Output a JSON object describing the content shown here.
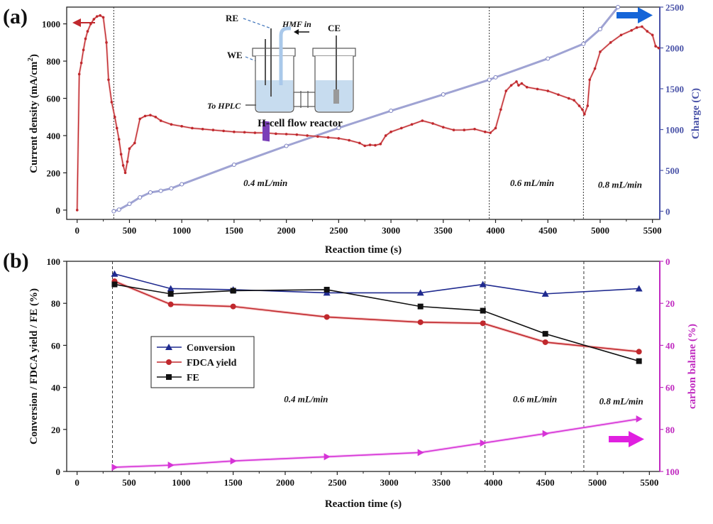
{
  "chart_data": [
    {
      "panel_label": "(a)",
      "type": "line",
      "xlabel": "Reaction time (s)",
      "ylabel_left": "Current density (mA/cm²)",
      "ylabel_left_base": "Current density (mA/cm",
      "ylabel_left_sup": "2",
      "ylabel_left_close": ")",
      "ylabel_right": "Charge (C)",
      "xlim": [
        -100,
        5570
      ],
      "ylim_left": [
        -50,
        1090
      ],
      "ylim_right": [
        -100,
        2500
      ],
      "xticks": [
        0,
        500,
        1000,
        1500,
        2000,
        2500,
        3000,
        3500,
        4000,
        4500,
        5000,
        5500
      ],
      "yticks_left": [
        0,
        200,
        400,
        600,
        800,
        1000
      ],
      "yticks_right": [
        0,
        500,
        1000,
        1500,
        2000,
        2500
      ],
      "vlines": [
        350,
        3940,
        4840
      ],
      "flow_labels": [
        {
          "text": "0.4 mL/min",
          "x": 1800,
          "y": 130
        },
        {
          "text": "0.6 mL/min",
          "x": 4350,
          "y": 130
        },
        {
          "text": "0.8 mL/min",
          "x": 5190,
          "y": 120
        }
      ],
      "inset": {
        "title": "H-cell flow reactor",
        "labels": [
          "RE",
          "HMF in",
          "CE",
          "WE",
          "To HPLC"
        ]
      },
      "series": [
        {
          "name": "Current density",
          "axis": "left",
          "color": "#c0282d",
          "x": [
            0,
            20,
            40,
            60,
            80,
            100,
            130,
            160,
            190,
            220,
            250,
            280,
            300,
            330,
            360,
            380,
            400,
            420,
            440,
            460,
            480,
            500,
            550,
            600,
            650,
            700,
            750,
            800,
            900,
            1000,
            1100,
            1200,
            1300,
            1400,
            1500,
            1600,
            1700,
            1800,
            1900,
            2000,
            2100,
            2200,
            2300,
            2400,
            2500,
            2600,
            2700,
            2750,
            2800,
            2850,
            2900,
            2950,
            3000,
            3100,
            3200,
            3300,
            3400,
            3500,
            3600,
            3700,
            3800,
            3900,
            3950,
            4000,
            4050,
            4100,
            4150,
            4200,
            4220,
            4250,
            4300,
            4400,
            4500,
            4600,
            4700,
            4750,
            4800,
            4830,
            4850,
            4880,
            4900,
            4950,
            5000,
            5100,
            5200,
            5300,
            5350,
            5400,
            5450,
            5500,
            5530,
            5560
          ],
          "values": [
            0,
            730,
            790,
            860,
            920,
            960,
            1000,
            1025,
            1040,
            1045,
            1035,
            900,
            700,
            580,
            500,
            440,
            380,
            300,
            240,
            200,
            260,
            330,
            360,
            490,
            505,
            510,
            500,
            480,
            460,
            450,
            440,
            435,
            430,
            425,
            420,
            418,
            415,
            415,
            410,
            408,
            405,
            400,
            395,
            390,
            385,
            375,
            360,
            345,
            350,
            348,
            355,
            400,
            420,
            440,
            460,
            480,
            465,
            445,
            430,
            430,
            435,
            420,
            415,
            440,
            540,
            640,
            670,
            690,
            670,
            680,
            660,
            650,
            640,
            620,
            600,
            590,
            560,
            540,
            515,
            560,
            700,
            760,
            850,
            900,
            940,
            965,
            980,
            985,
            960,
            940,
            880,
            870
          ]
        },
        {
          "name": "Charge",
          "axis": "right",
          "color": "#9fa3d3",
          "x": [
            350,
            400,
            500,
            600,
            700,
            800,
            900,
            1000,
            1500,
            2000,
            2500,
            3000,
            3500,
            3940,
            4000,
            4500,
            4840,
            5000,
            5170
          ],
          "values": [
            0,
            20,
            90,
            170,
            230,
            250,
            280,
            330,
            570,
            800,
            1020,
            1230,
            1430,
            1610,
            1640,
            1870,
            2050,
            2230,
            2500
          ]
        }
      ]
    },
    {
      "panel_label": "(b)",
      "type": "line",
      "xlabel": "Reaction time (s)",
      "ylabel_left": "Conversion / FDCA yield / FE (%)",
      "ylabel_right": "carbon balane (%)",
      "xlim": [
        -100,
        5600
      ],
      "ylim_left": [
        0,
        100
      ],
      "ylim_right": [
        0,
        100
      ],
      "right_inverted": true,
      "xticks": [
        0,
        500,
        1000,
        1500,
        2000,
        2500,
        3000,
        3500,
        4000,
        4500,
        5000,
        5500
      ],
      "yticks_left": [
        0,
        20,
        40,
        60,
        80,
        100
      ],
      "yticks_right": [
        0,
        20,
        40,
        60,
        80,
        100
      ],
      "vlines": [
        340,
        3920,
        4870
      ],
      "flow_labels": [
        {
          "text": "0.4 mL/min",
          "x": 2200,
          "y": 33
        },
        {
          "text": "0.6 mL/min",
          "x": 4400,
          "y": 33
        },
        {
          "text": "0.8 mL/min",
          "x": 5230,
          "y": 32
        }
      ],
      "legend": [
        "Conversion",
        "FDCA yield",
        "FE"
      ],
      "series": [
        {
          "name": "Conversion",
          "axis": "left",
          "color": "#1f2a8f",
          "marker": "triangle",
          "x": [
            360,
            900,
            1500,
            2400,
            3300,
            3900,
            4500,
            5400
          ],
          "values": [
            94,
            87,
            86.5,
            85,
            85,
            89,
            84.5,
            87
          ]
        },
        {
          "name": "FDCA yield",
          "axis": "left",
          "color": "#c0282d",
          "marker": "circle",
          "x": [
            360,
            900,
            1500,
            2400,
            3300,
            3900,
            4500,
            5400
          ],
          "values": [
            90.5,
            79.5,
            78.5,
            73.5,
            71,
            70.5,
            61.5,
            57
          ]
        },
        {
          "name": "FE",
          "axis": "left",
          "color": "#111111",
          "marker": "square",
          "x": [
            360,
            900,
            1500,
            2400,
            3300,
            3900,
            4500,
            5400
          ],
          "values": [
            89,
            84.5,
            86,
            86.5,
            78.5,
            76.5,
            65.5,
            52.5
          ]
        },
        {
          "name": "Carbon balance",
          "axis": "right",
          "color": "#d633d6",
          "marker": "right-triangle",
          "x": [
            360,
            900,
            1500,
            2400,
            3300,
            3900,
            4500,
            5400
          ],
          "values": [
            98,
            97,
            95,
            93,
            91,
            86.5,
            82,
            75
          ]
        }
      ]
    }
  ]
}
